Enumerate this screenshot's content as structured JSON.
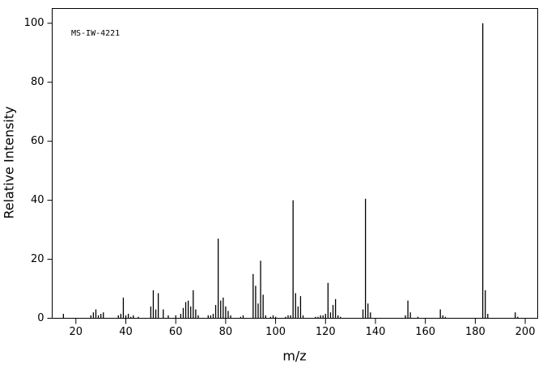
{
  "chart_data": {
    "type": "bar",
    "annotation": "MS-IW-4221",
    "x_label": "m/z",
    "y_label": "Relative Intensity",
    "x": [
      15,
      26,
      27,
      28,
      29,
      30,
      31,
      37,
      38,
      39,
      40,
      41,
      42,
      43,
      45,
      50,
      51,
      52,
      53,
      55,
      57,
      60,
      62,
      63,
      64,
      65,
      66,
      67,
      68,
      69,
      73,
      74,
      75,
      76,
      77,
      78,
      79,
      80,
      81,
      82,
      86,
      87,
      91,
      92,
      93,
      94,
      95,
      96,
      98,
      99,
      100,
      104,
      105,
      106,
      107,
      108,
      109,
      110,
      111,
      116,
      117,
      118,
      119,
      120,
      121,
      122,
      123,
      124,
      125,
      126,
      135,
      136,
      137,
      138,
      152,
      153,
      154,
      157,
      166,
      167,
      168,
      183,
      184,
      185,
      196,
      197
    ],
    "values": [
      1.5,
      1,
      2,
      3,
      1,
      1.5,
      2,
      1,
      1.5,
      7,
      1,
      1.5,
      0.5,
      1,
      0.5,
      4,
      9.5,
      3,
      8.5,
      3,
      1,
      1,
      1.5,
      3.5,
      5.5,
      6,
      4,
      9.5,
      3,
      1,
      1,
      1,
      1.5,
      4.5,
      27,
      6,
      7,
      4,
      2.5,
      1,
      0.5,
      1,
      15,
      11,
      5,
      19.5,
      8,
      1,
      0.5,
      1,
      0.5,
      0.5,
      1,
      1,
      40,
      8.5,
      4,
      7.5,
      1,
      0.5,
      0.5,
      1,
      1,
      1.5,
      12,
      2,
      4.5,
      6.5,
      1,
      0.5,
      3,
      40.5,
      5,
      2,
      1,
      6,
      2,
      0.5,
      3,
      1,
      0.5,
      100,
      9.5,
      1.5,
      2,
      0.5
    ],
    "color": "#000000",
    "xlim": [
      10.5,
      205
    ],
    "ylim": [
      0,
      105
    ],
    "xticks": [
      20,
      40,
      60,
      80,
      100,
      120,
      140,
      160,
      180,
      200
    ],
    "yticks": [
      0,
      20,
      40,
      60,
      80,
      100
    ]
  }
}
